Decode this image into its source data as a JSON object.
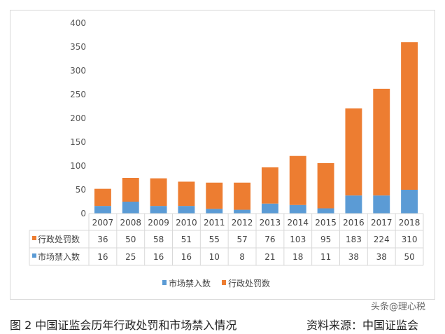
{
  "chart_data": {
    "type": "bar",
    "stacked": true,
    "categories": [
      "2007",
      "2008",
      "2009",
      "2010",
      "2011",
      "2012",
      "2013",
      "2014",
      "2015",
      "2016",
      "2017",
      "2018"
    ],
    "series": [
      {
        "name": "市场禁入数",
        "color": "#5B9BD5",
        "values": [
          16,
          25,
          16,
          16,
          10,
          8,
          21,
          18,
          11,
          38,
          38,
          50
        ]
      },
      {
        "name": "行政处罚数",
        "color": "#ED7D31",
        "values": [
          36,
          50,
          58,
          51,
          55,
          57,
          76,
          103,
          95,
          183,
          224,
          310
        ]
      }
    ],
    "table_order": [
      1,
      0
    ],
    "ylim": [
      0,
      400
    ],
    "yticks": [
      0,
      50,
      100,
      150,
      200,
      250,
      300,
      350,
      400
    ],
    "grid": false,
    "legend": "bottom",
    "data_table": true
  },
  "caption": "图 2  中国证监会历年行政处罚和市场禁入情况",
  "source": "资料来源：中国证监会",
  "watermark": "头条@理心税"
}
